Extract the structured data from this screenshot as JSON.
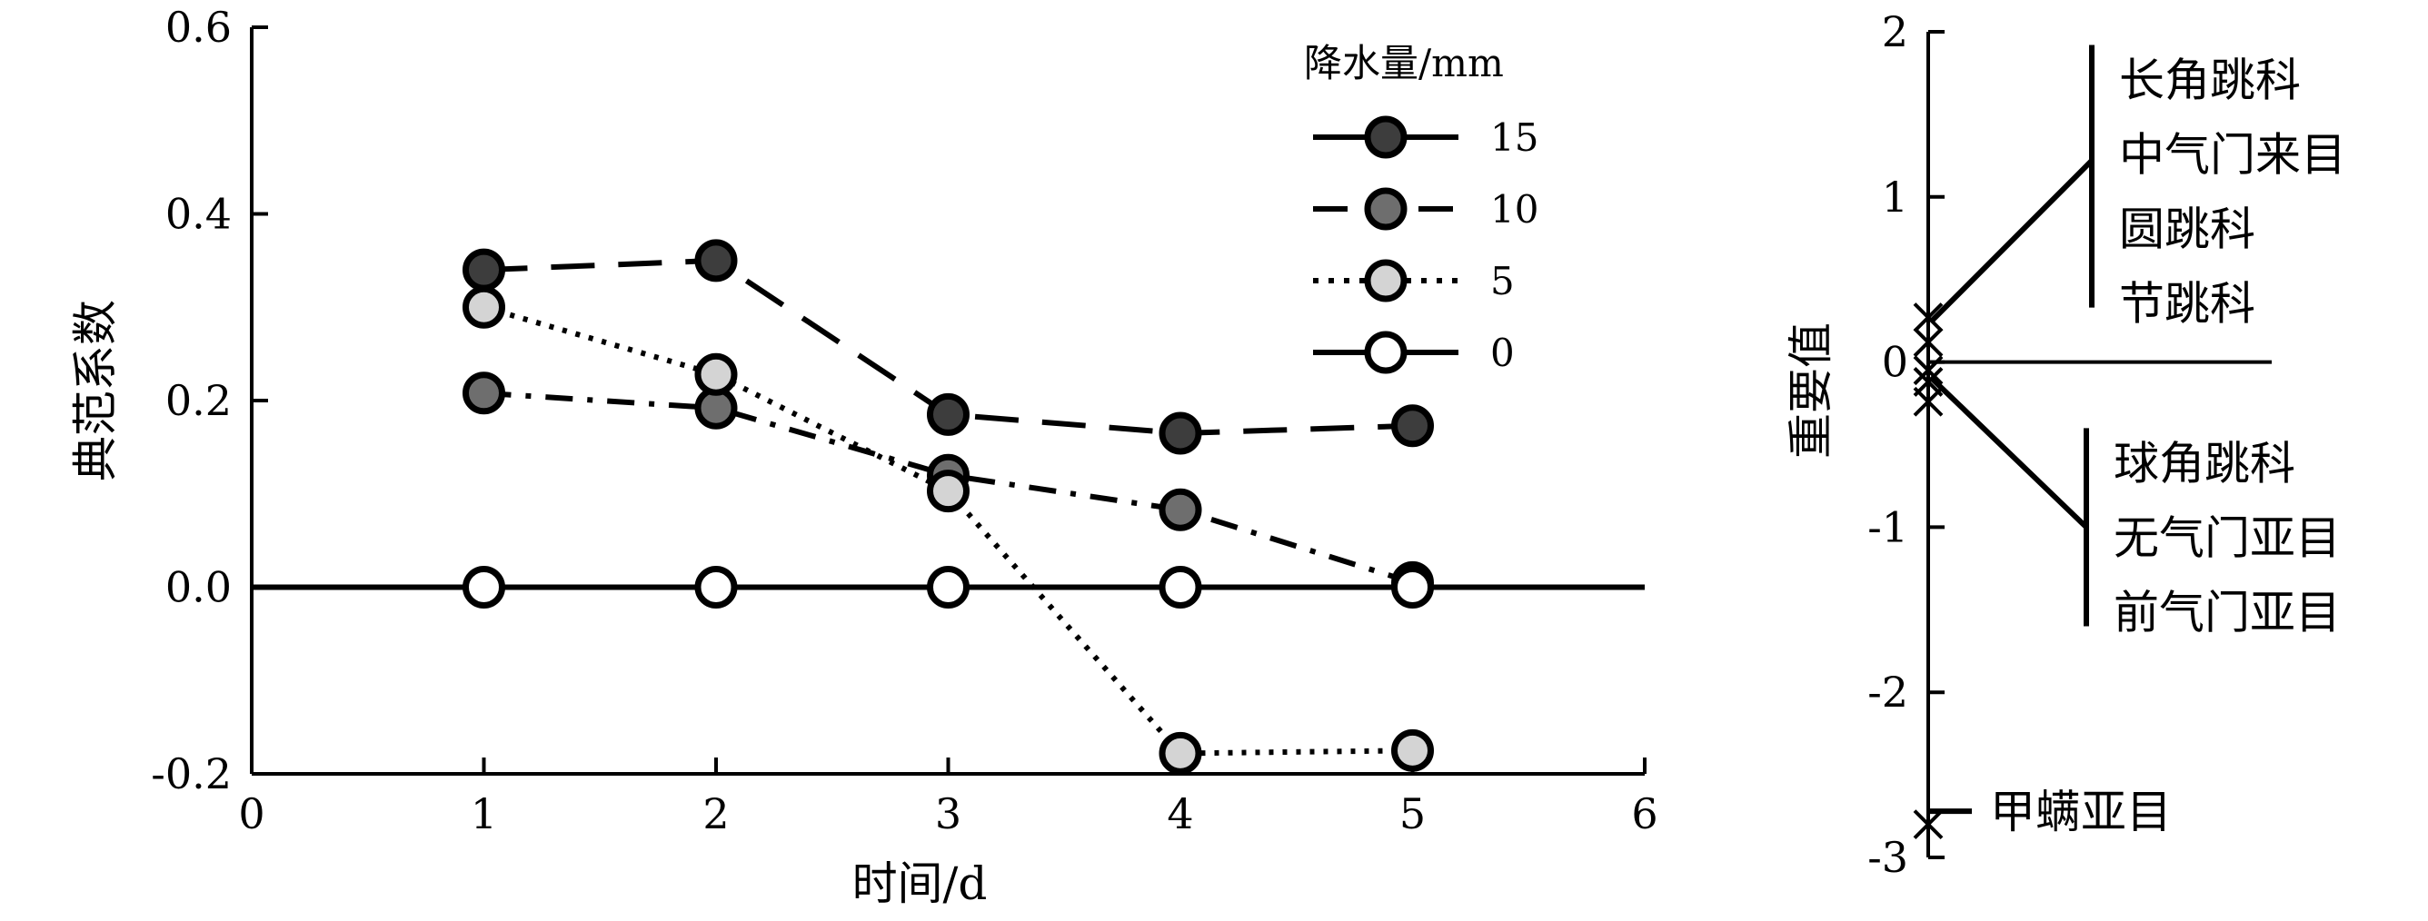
{
  "chart_data": [
    {
      "type": "line",
      "ylabel": "典范系数",
      "xlabel": "时间/d",
      "xlim": [
        0,
        6
      ],
      "ylim": [
        -0.2,
        0.6
      ],
      "x_ticks": [
        "0",
        "1",
        "2",
        "3",
        "4",
        "5",
        "6"
      ],
      "y_ticks": [
        "-0.2",
        "0.0",
        "0.2",
        "0.4",
        "0.6"
      ],
      "legend_title": "降水量/mm",
      "legend_position": "top-right",
      "series": [
        {
          "name": "15",
          "dash": "solid",
          "fill": "#3d3d3d",
          "x": [
            1,
            2,
            3,
            4,
            5
          ],
          "y": [
            0.34,
            0.35,
            0.185,
            0.165,
            0.173
          ]
        },
        {
          "name": "10",
          "dash": "dash",
          "fill": "#6e6e6e",
          "x": [
            1,
            2,
            3,
            4,
            5
          ],
          "y": [
            0.208,
            0.192,
            0.12,
            0.083,
            0.005
          ]
        },
        {
          "name": "5",
          "dash": "dot",
          "fill": "#d4d4d4",
          "x": [
            1,
            2,
            3,
            4,
            5
          ],
          "y": [
            0.3,
            0.228,
            0.103,
            -0.178,
            -0.175
          ]
        },
        {
          "name": "0",
          "dash": "solid",
          "fill": "#ffffff",
          "x": [
            1,
            2,
            3,
            4,
            5
          ],
          "y": [
            0,
            0,
            0,
            0,
            0
          ]
        }
      ],
      "lines": [
        {
          "series": "15",
          "style": "long-dash",
          "x": [
            1,
            2,
            3,
            4,
            5
          ],
          "y": [
            0.34,
            0.35,
            0.185,
            0.165,
            0.173
          ]
        },
        {
          "series": "10",
          "style": "dash-dot",
          "x": [
            1,
            2,
            3,
            4,
            5
          ],
          "y": [
            0.208,
            0.192,
            0.12,
            0.083,
            0.005
          ]
        },
        {
          "series": "5",
          "style": "dot",
          "x": [
            1,
            2,
            3,
            4,
            5
          ],
          "y": [
            0.3,
            0.228,
            0.103,
            -0.178,
            -0.175
          ]
        },
        {
          "series": "0",
          "style": "solid",
          "x": [
            0,
            6
          ],
          "y": [
            0,
            0
          ]
        }
      ]
    },
    {
      "type": "scatter",
      "ylabel": "重要值",
      "ylim": [
        -3,
        2
      ],
      "y_ticks": [
        "2",
        "1",
        "0",
        "-1",
        "-2",
        "-3"
      ],
      "markers": [
        0.27,
        0.12,
        -0.05,
        -0.12,
        -0.24,
        -2.8
      ],
      "groups": [
        {
          "labels": [
            "长角跳科",
            "中气门来目",
            "圆跳科",
            "节跳科"
          ],
          "y_top": 1.92,
          "y_bottom": 0.33,
          "y_join": 1.22
        },
        {
          "labels": [
            "球角跳科",
            "无气门亚目",
            "前气门亚目"
          ],
          "y_top": -0.4,
          "y_bottom": -1.6,
          "y_join": -1.0
        },
        {
          "labels": [
            "甲螨亚目"
          ],
          "y_top": -2.72,
          "y_bottom": -2.72,
          "y_join": -2.72
        }
      ]
    }
  ]
}
